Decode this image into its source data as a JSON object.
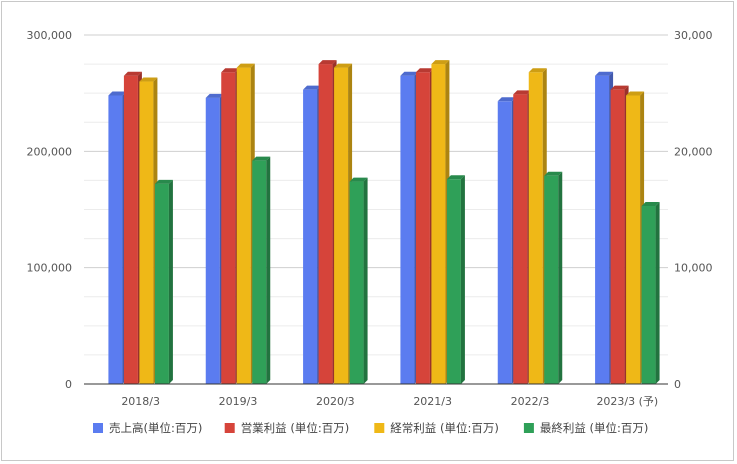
{
  "chart_data": {
    "type": "bar",
    "view": "3d-column",
    "categories": [
      "2018/3",
      "2019/3",
      "2020/3",
      "2021/3",
      "2022/3",
      "2023/3 (予)"
    ],
    "left_axis": {
      "ylim": [
        0,
        300000
      ],
      "ticks": [
        "0",
        "100,000",
        "200,000",
        "300,000"
      ],
      "tick_values": [
        0,
        100000,
        200000,
        300000
      ]
    },
    "right_axis": {
      "ylim": [
        0,
        30000
      ],
      "ticks": [
        "0",
        "10,000",
        "20,000",
        "30,000"
      ],
      "tick_values": [
        0,
        10000,
        20000,
        30000
      ]
    },
    "series": [
      {
        "name": "売上高(単位:百万)",
        "axis": "left",
        "color": "#5b7cf0",
        "values": [
          248000,
          246000,
          253000,
          265000,
          243000,
          265000
        ]
      },
      {
        "name": "営業利益 (単位:百万)",
        "axis": "right",
        "color": "#d6443a",
        "values": [
          26500,
          26800,
          27500,
          26800,
          24900,
          25300
        ]
      },
      {
        "name": "経常利益 (単位:百万)",
        "axis": "right",
        "color": "#efb817",
        "values": [
          26000,
          27200,
          27200,
          27500,
          26800,
          24800
        ]
      },
      {
        "name": "最終利益 (単位:百万)",
        "axis": "right",
        "color": "#2fa058",
        "values": [
          17200,
          19200,
          17400,
          17600,
          17900,
          15300
        ]
      }
    ],
    "grid": true,
    "legend_position": "bottom"
  }
}
